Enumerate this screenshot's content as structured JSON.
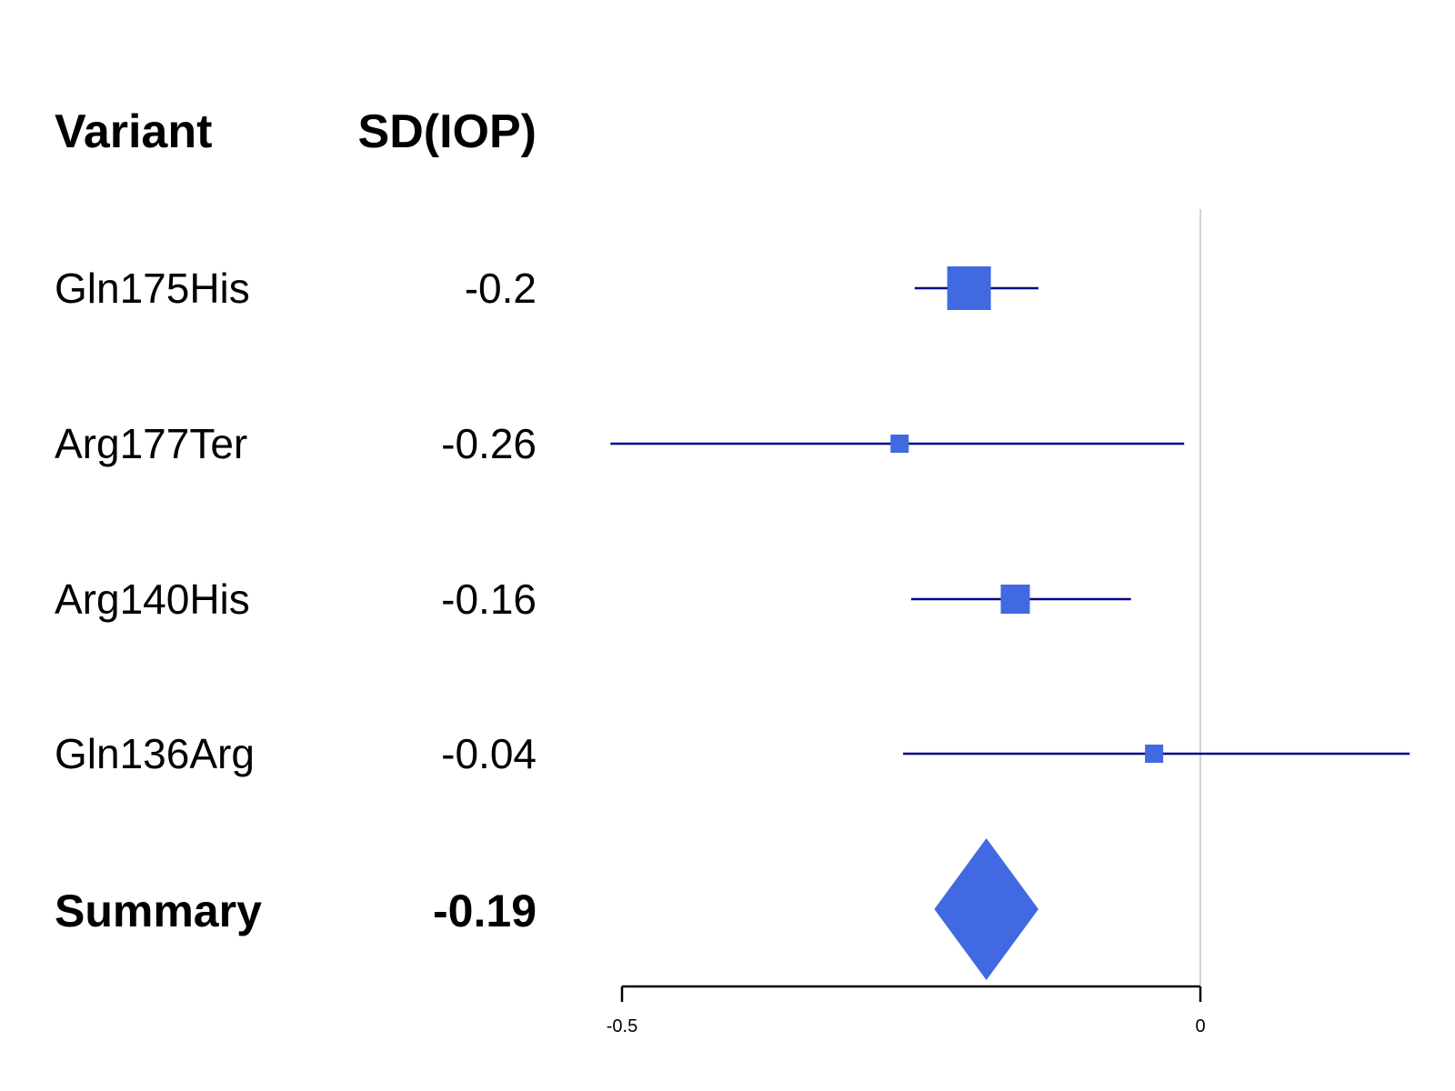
{
  "chart_data": {
    "type": "forest",
    "headers": {
      "label": "Variant",
      "value": "SD(IOP)"
    },
    "rows": [
      {
        "label": "Gln175His",
        "value_text": "-0.2",
        "estimate": -0.2,
        "ci": [
          -0.247,
          -0.14
        ],
        "weight": "large"
      },
      {
        "label": "Arg177Ter",
        "value_text": "-0.26",
        "estimate": -0.26,
        "ci": [
          -0.51,
          -0.014
        ],
        "weight": "small"
      },
      {
        "label": "Arg140His",
        "value_text": "-0.16",
        "estimate": -0.16,
        "ci": [
          -0.25,
          -0.06
        ],
        "weight": "medium"
      },
      {
        "label": "Gln136Arg",
        "value_text": "-0.04",
        "estimate": -0.04,
        "ci": [
          -0.257,
          0.181
        ],
        "weight": "small"
      }
    ],
    "summary": {
      "label": "Summary",
      "value_text": "-0.19",
      "estimate": -0.185,
      "ci": [
        -0.23,
        -0.14
      ]
    },
    "x_axis": {
      "range": [
        -0.5,
        0
      ],
      "ticks": [
        -0.5,
        0
      ],
      "tick_labels": [
        "-0.5",
        "0"
      ]
    },
    "reference_line": 0,
    "colors": {
      "marker": "#4169E1",
      "ci_line": "#00008B",
      "ref_line": "#d3d3d3",
      "axis": "#000000"
    }
  }
}
